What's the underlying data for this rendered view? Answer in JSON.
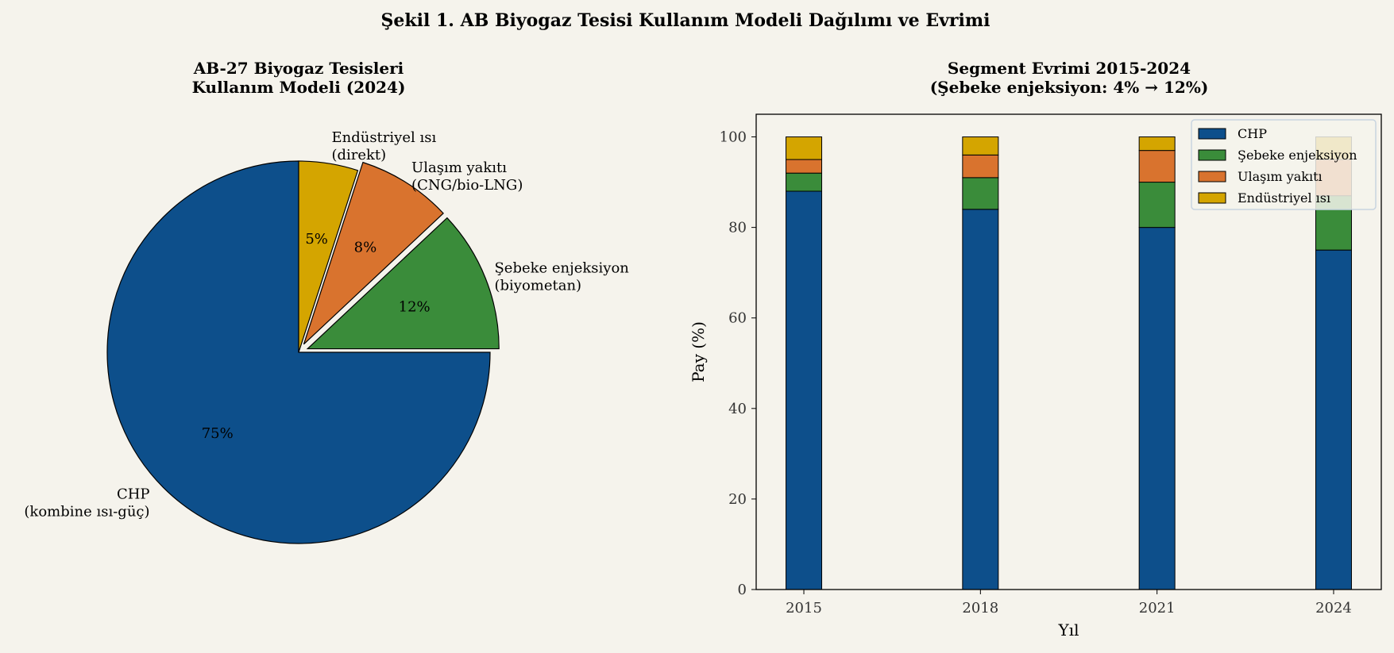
{
  "figure_title": "Şekil 1. AB Biyogaz Tesisi Kullanım Modeli Dağılımı ve Evrimi",
  "chart_data": [
    {
      "type": "pie",
      "title_lines": [
        "AB-27 Biyogaz Tesisleri",
        "Kullanım Modeli (2024)"
      ],
      "slices": [
        {
          "label_lines": [
            "CHP",
            "(kombine ısı-güç)"
          ],
          "value": 75,
          "pct_label": "75%",
          "color": "#0d4f8b",
          "exploded": false
        },
        {
          "label_lines": [
            "Şebeke enjeksiyon",
            "(biyometan)"
          ],
          "value": 12,
          "pct_label": "12%",
          "color": "#3a8c3a",
          "exploded": true
        },
        {
          "label_lines": [
            "Ulaşım yakıtı",
            "(CNG/bio-LNG)"
          ],
          "value": 8,
          "pct_label": "8%",
          "color": "#d9732e",
          "exploded": true
        },
        {
          "label_lines": [
            "Endüstriyel ısı",
            "(direkt)"
          ],
          "value": 5,
          "pct_label": "5%",
          "color": "#d4a500",
          "exploded": false
        }
      ],
      "start_angle_deg": 90,
      "direction": "counterclockwise"
    },
    {
      "type": "bar",
      "stacked": true,
      "title_lines": [
        "Segment Evrimi 2015-2024",
        "(Şebeke enjeksiyon: 4% → 12%)"
      ],
      "xlabel": "Yıl",
      "ylabel": "Pay (%)",
      "categories": [
        "2015",
        "2018",
        "2021",
        "2024"
      ],
      "ylim": [
        0,
        105
      ],
      "yticks": [
        0,
        20,
        40,
        60,
        80,
        100
      ],
      "grid": false,
      "legend_placement": "top-right",
      "series": [
        {
          "name": "CHP",
          "values": [
            88,
            84,
            80,
            75
          ],
          "color": "#0d4f8b"
        },
        {
          "name": "Şebeke enjeksiyon",
          "values": [
            4,
            7,
            10,
            12
          ],
          "color": "#3a8c3a"
        },
        {
          "name": "Ulaşım yakıtı",
          "values": [
            3,
            5,
            7,
            8
          ],
          "color": "#d9732e"
        },
        {
          "name": "Endüstriyel ısı",
          "values": [
            5,
            4,
            3,
            5
          ],
          "color": "#d4a500"
        }
      ]
    }
  ]
}
